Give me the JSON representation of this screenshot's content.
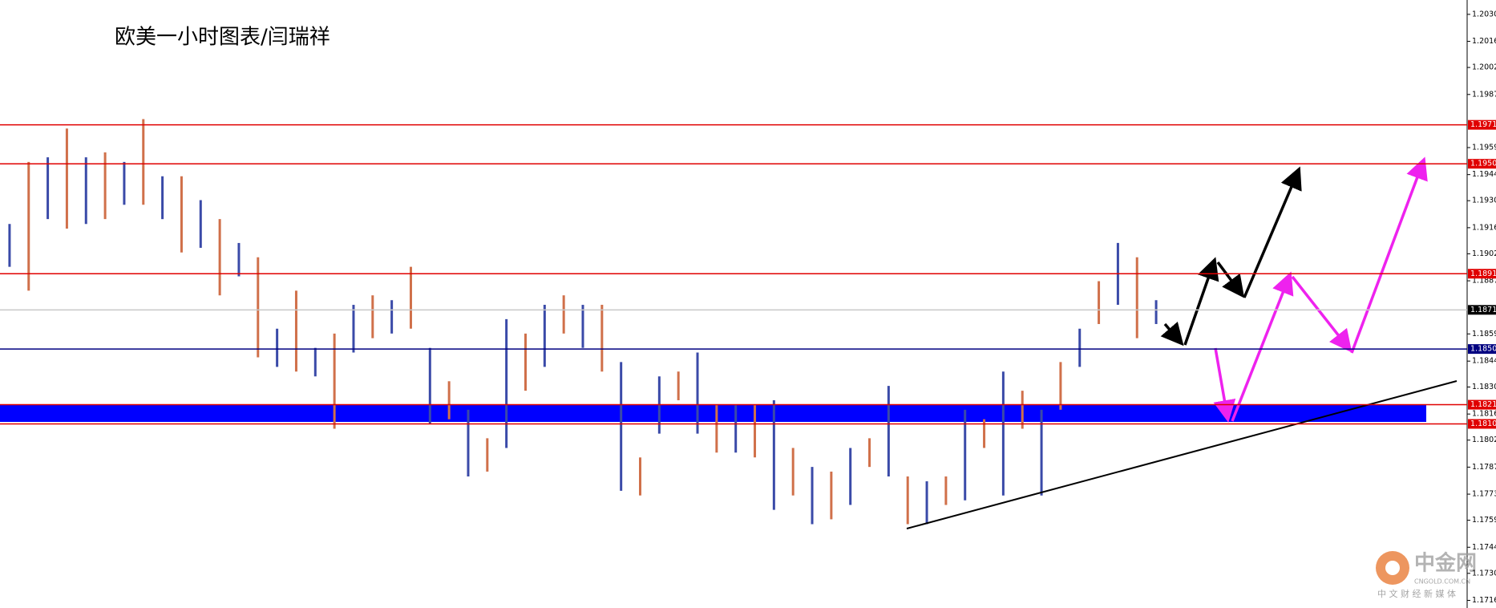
{
  "chart_data": {
    "type": "range",
    "title": "欧美一小时图表/闫瑞祥",
    "ylim": [
      1.17119,
      1.20382
    ],
    "yticks": [
      1.20305,
      {
        "value": 1.2016,
        "label": "1.20160"
      },
      {
        "value": 1.2002,
        "label": "1.20020"
      },
      1.19875,
      {
        "value": 1.1959,
        "label": "1.19590"
      },
      1.19445,
      1.19305,
      {
        "value": 1.1916,
        "label": "1.19160"
      },
      {
        "value": 1.1902,
        "label": "1.19020"
      },
      1.18875,
      {
        "value": 1.1859,
        "label": "1.18590"
      },
      1.18444,
      1.18305,
      {
        "value": 1.1816,
        "label": "1.18160"
      },
      {
        "value": 1.1802,
        "label": "1.18020"
      },
      1.17875,
      {
        "value": 1.1773,
        "label": "1.17730"
      },
      {
        "value": 1.1759,
        "label": "1.17590"
      },
      1.17445,
      1.17305,
      {
        "value": 1.1716,
        "label": "1.17160"
      }
    ],
    "series": [
      {
        "colors": [
          "#3a4aa8",
          "#d0704a"
        ],
        "high": [
          1.1918,
          1.19513,
          1.19538,
          1.19692,
          1.19538,
          1.19564,
          1.19513,
          1.19743,
          1.19436,
          1.19436,
          1.19308,
          1.19206,
          1.19078,
          1.19001,
          1.18618,
          1.18822,
          1.18515,
          1.18592,
          1.18746,
          1.18797,
          1.18771,
          1.1895,
          1.18515,
          1.18336,
          1.18183,
          1.1803,
          1.18669,
          1.18592,
          1.18746,
          1.18797,
          1.18746,
          1.18746,
          1.18439,
          1.17927,
          1.18362,
          1.18388,
          1.1849,
          1.18209,
          1.18209,
          1.18209,
          1.18234,
          1.17978,
          1.17876,
          1.17851,
          1.17978,
          1.1803,
          1.18311,
          1.17825,
          1.17799,
          1.17825,
          1.18183,
          1.18132,
          1.18388,
          1.18285,
          1.18183,
          1.18439,
          1.18618,
          1.18873,
          1.19078,
          1.19001,
          1.18771
        ],
        "low": [
          1.1895,
          1.18822,
          1.19206,
          1.19155,
          1.1918,
          1.19206,
          1.19283,
          1.19283,
          1.19206,
          1.19027,
          1.19052,
          1.18797,
          1.18899,
          1.18464,
          1.18413,
          1.18388,
          1.18362,
          1.18081,
          1.1849,
          1.18567,
          1.18592,
          1.18618,
          1.18106,
          1.18132,
          1.17825,
          1.17851,
          1.17978,
          1.18285,
          1.18413,
          1.18592,
          1.18515,
          1.18388,
          1.17748,
          1.17723,
          1.18055,
          1.18234,
          1.18055,
          1.17953,
          1.17953,
          1.17927,
          1.17646,
          1.17723,
          1.17569,
          1.17595,
          1.17672,
          1.17876,
          1.17825,
          1.17569,
          1.17569,
          1.17672,
          1.17697,
          1.17978,
          1.17723,
          1.18081,
          1.17723,
          1.18183,
          1.18413,
          1.18643,
          1.18746,
          1.18567,
          1.18643
        ]
      }
    ],
    "levels": [
      {
        "value": 1.19712,
        "color": "#e00000"
      },
      {
        "value": 1.19503,
        "color": "#e00000"
      },
      {
        "value": 1.18913,
        "color": "#e00000"
      },
      {
        "value": 1.18719,
        "color": "#c8c8c8",
        "label_color": "#000000"
      },
      {
        "value": 1.18509,
        "color": "#000080"
      },
      {
        "value": 1.1821,
        "label": "1.18210",
        "color": "#e00000"
      },
      {
        "value": 1.18107,
        "color": "#e00000"
      }
    ],
    "watermark": {
      "logo": "中金网",
      "site": "CNGOLD.COM.CN",
      "slogan": "中 文 财 经 新 媒 体"
    }
  }
}
